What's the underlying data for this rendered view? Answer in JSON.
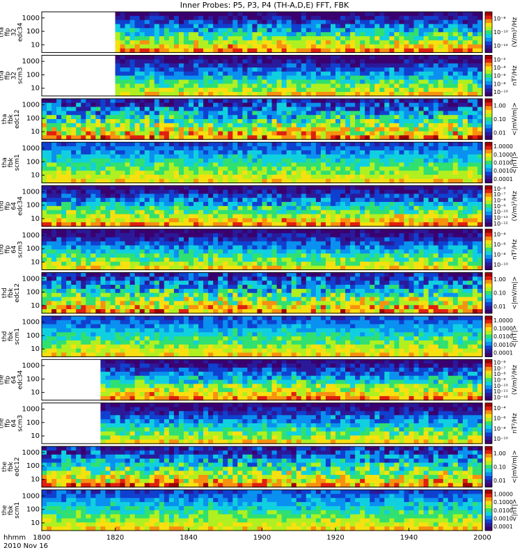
{
  "title": "Inner Probes: P5, P3, P4 (TH-A,D,E) FFT, FBK",
  "footer": {
    "unit_label": "hhmm",
    "date_label": "2010 Nov 16"
  },
  "chart_data": {
    "type": "heatmap",
    "title": "Inner Probes: P5, P3, P4 (TH-A,D,E) FFT, FBK",
    "x": {
      "ticks": [
        "1800",
        "1820",
        "1840",
        "1900",
        "1920",
        "1940",
        "2000"
      ]
    },
    "panels": [
      {
        "name": "tha ffp 32 edc34",
        "yticks": [
          "1000",
          "100",
          "10"
        ],
        "cbar_unit": "(V/m)²/Hz",
        "cbar_ticks": [
          "10⁻⁸",
          "10⁻¹⁰",
          "10⁻¹²"
        ],
        "style": "fft",
        "gap_end": 0.17
      },
      {
        "name": "tha ffp 32 scm3",
        "yticks": [
          "1000",
          "100",
          "10"
        ],
        "cbar_unit": "nT²/Hz",
        "cbar_ticks": [
          "10⁻²",
          "10⁻⁴",
          "10⁻⁶",
          "10⁻⁸",
          "10⁻¹⁰"
        ],
        "style": "scm",
        "gap_end": 0.17
      },
      {
        "name": "tha fbk edc12",
        "yticks": [
          "1000",
          "100",
          "10"
        ],
        "cbar_unit": "<|mV/m|>",
        "cbar_ticks": [
          "1.00",
          "0.10",
          "0.01"
        ],
        "style": "fbk",
        "gap_end": 0
      },
      {
        "name": "tha fbk scm1",
        "yticks": [
          "1000",
          "100",
          "10"
        ],
        "cbar_unit": "<|nT|>",
        "cbar_ticks": [
          "1.0000",
          "0.1000",
          "0.0100",
          "0.0010",
          "0.0001"
        ],
        "style": "fbks",
        "gap_end": 0
      },
      {
        "name": "thd ffp 64 edc34",
        "yticks": [
          "1000",
          "100",
          "10"
        ],
        "cbar_unit": "(V/m)²/Hz",
        "cbar_ticks": [
          "10⁻⁶",
          "10⁻⁷",
          "10⁻⁸",
          "10⁻⁹",
          "10⁻¹⁰",
          "10⁻¹¹",
          "10⁻¹²"
        ],
        "style": "fft",
        "gap_end": 0
      },
      {
        "name": "thd ffp 64 scm3",
        "yticks": [
          "1000",
          "100",
          "10"
        ],
        "cbar_unit": "nT²/Hz",
        "cbar_ticks": [
          "10⁻⁴",
          "10⁻⁶",
          "10⁻⁸",
          "10⁻¹⁰"
        ],
        "style": "scm",
        "gap_end": 0
      },
      {
        "name": "thd fbk edc12",
        "yticks": [
          "1000",
          "100",
          "10"
        ],
        "cbar_unit": "<|mV/m|>",
        "cbar_ticks": [
          "1.00",
          "0.10",
          "0.01"
        ],
        "style": "fbk",
        "gap_end": 0
      },
      {
        "name": "thd fbk scm1",
        "yticks": [
          "1000",
          "100",
          "10"
        ],
        "cbar_unit": "<|nT|>",
        "cbar_ticks": [
          "1.0000",
          "0.1000",
          "0.0100",
          "0.0010",
          "0.0001"
        ],
        "style": "fbks",
        "gap_end": 0
      },
      {
        "name": "the ffp 64 edc34",
        "yticks": [
          "1000",
          "100",
          "10"
        ],
        "cbar_unit": "(V/m)²/Hz",
        "cbar_ticks": [
          "10⁻⁶",
          "10⁻⁷",
          "10⁻⁸",
          "10⁻⁹",
          "10⁻¹⁰",
          "10⁻¹¹",
          "10⁻¹²"
        ],
        "style": "fft",
        "gap_end": 0.13
      },
      {
        "name": "the ffp 64 scm3",
        "yticks": [
          "1000",
          "100",
          "10"
        ],
        "cbar_unit": "nT²/Hz",
        "cbar_ticks": [
          "10⁻⁴",
          "10⁻⁶",
          "10⁻⁸",
          "10⁻¹⁰"
        ],
        "style": "scm",
        "gap_end": 0.13
      },
      {
        "name": "the fbk edc12",
        "yticks": [
          "1000",
          "100",
          "10"
        ],
        "cbar_unit": "<|mV/m|>",
        "cbar_ticks": [
          "1.00",
          "0.10",
          "0.01"
        ],
        "style": "fbk",
        "gap_end": 0
      },
      {
        "name": "the fbk scm1",
        "yticks": [
          "1000",
          "100",
          "10"
        ],
        "cbar_unit": "<|nT|>",
        "cbar_ticks": [
          "1.0000",
          "0.1000",
          "0.0100",
          "0.0010",
          "0.0001"
        ],
        "style": "fbks",
        "gap_end": 0
      }
    ]
  }
}
